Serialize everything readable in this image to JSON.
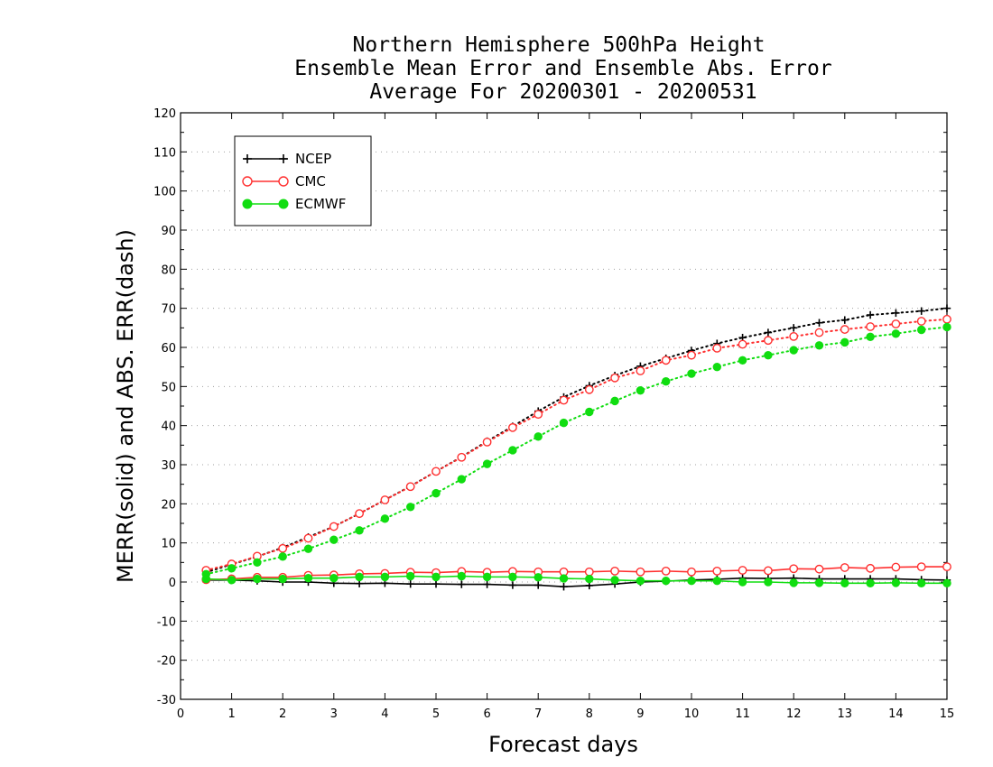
{
  "chart_data": {
    "type": "line",
    "title": [
      "Northern Hemisphere 500hPa Height",
      "Ensemble Mean Error and Ensemble Abs. Error",
      "Average For 20200301 - 20200531"
    ],
    "xlabel": "Forecast days",
    "ylabel": "MERR(solid) and ABS. ERR(dash)",
    "xlim": [
      0,
      15
    ],
    "ylim": [
      -30,
      120
    ],
    "xticks": [
      0,
      1,
      2,
      3,
      4,
      5,
      6,
      7,
      8,
      9,
      10,
      11,
      12,
      13,
      14,
      15
    ],
    "yticks": [
      -30,
      -20,
      -10,
      0,
      10,
      20,
      30,
      40,
      50,
      60,
      70,
      80,
      90,
      100,
      110,
      120
    ],
    "grid": true,
    "legend_position": "top-left",
    "x": [
      0.5,
      1,
      1.5,
      2,
      2.5,
      3,
      3.5,
      4,
      4.5,
      5,
      5.5,
      6,
      6.5,
      7,
      7.5,
      8,
      8.5,
      9,
      9.5,
      10,
      10.5,
      11,
      11.5,
      12,
      12.5,
      13,
      13.5,
      14,
      14.5,
      15
    ],
    "series": [
      {
        "name": "NCEP",
        "color": "#000000",
        "marker": "plus",
        "merr": [
          0.5,
          0.5,
          0.3,
          0.0,
          0.0,
          -0.3,
          -0.4,
          -0.3,
          -0.5,
          -0.5,
          -0.6,
          -0.6,
          -0.8,
          -0.8,
          -1.2,
          -0.9,
          -0.5,
          0.0,
          0.2,
          0.5,
          0.7,
          1.0,
          0.9,
          1.0,
          0.8,
          0.8,
          0.8,
          0.8,
          0.6,
          0.5
        ],
        "abs_err": [
          2.5,
          4.5,
          6.5,
          8.8,
          11.5,
          14.2,
          17.5,
          21.0,
          24.5,
          28.3,
          32.0,
          36.0,
          39.8,
          43.7,
          47.3,
          50.2,
          52.8,
          55.2,
          57.2,
          59.2,
          61.0,
          62.5,
          63.8,
          65.0,
          66.3,
          67.0,
          68.3,
          68.8,
          69.3,
          70.0
        ]
      },
      {
        "name": "CMC",
        "color": "#ff3030",
        "marker": "open-circle",
        "merr": [
          0.6,
          0.8,
          1.2,
          1.2,
          1.7,
          1.8,
          2.1,
          2.2,
          2.5,
          2.4,
          2.7,
          2.5,
          2.7,
          2.6,
          2.6,
          2.6,
          2.8,
          2.6,
          2.8,
          2.6,
          2.8,
          3.0,
          2.9,
          3.4,
          3.3,
          3.7,
          3.5,
          3.8,
          3.9,
          3.9
        ],
        "abs_err": [
          3.0,
          4.6,
          6.6,
          8.6,
          11.2,
          14.2,
          17.5,
          21.0,
          24.4,
          28.3,
          31.9,
          35.8,
          39.5,
          42.9,
          46.5,
          49.2,
          52.2,
          54.0,
          56.7,
          58.0,
          59.8,
          60.8,
          61.8,
          62.8,
          63.8,
          64.6,
          65.3,
          66.0,
          66.7,
          67.2
        ]
      },
      {
        "name": "ECMWF",
        "color": "#10dd10",
        "marker": "filled-circle",
        "merr": [
          0.8,
          0.5,
          0.8,
          0.8,
          1.0,
          1.0,
          1.3,
          1.3,
          1.5,
          1.3,
          1.5,
          1.3,
          1.3,
          1.2,
          0.9,
          0.8,
          0.5,
          0.3,
          0.3,
          0.3,
          0.3,
          0.0,
          0.0,
          -0.2,
          -0.2,
          -0.3,
          -0.3,
          -0.2,
          -0.3,
          -0.3
        ],
        "abs_err": [
          2.0,
          3.5,
          5.0,
          6.5,
          8.5,
          10.8,
          13.2,
          16.2,
          19.2,
          22.7,
          26.3,
          30.2,
          33.7,
          37.2,
          40.7,
          43.5,
          46.3,
          49.0,
          51.3,
          53.3,
          55.0,
          56.7,
          58.0,
          59.3,
          60.5,
          61.3,
          62.7,
          63.5,
          64.5,
          65.2
        ]
      }
    ]
  }
}
